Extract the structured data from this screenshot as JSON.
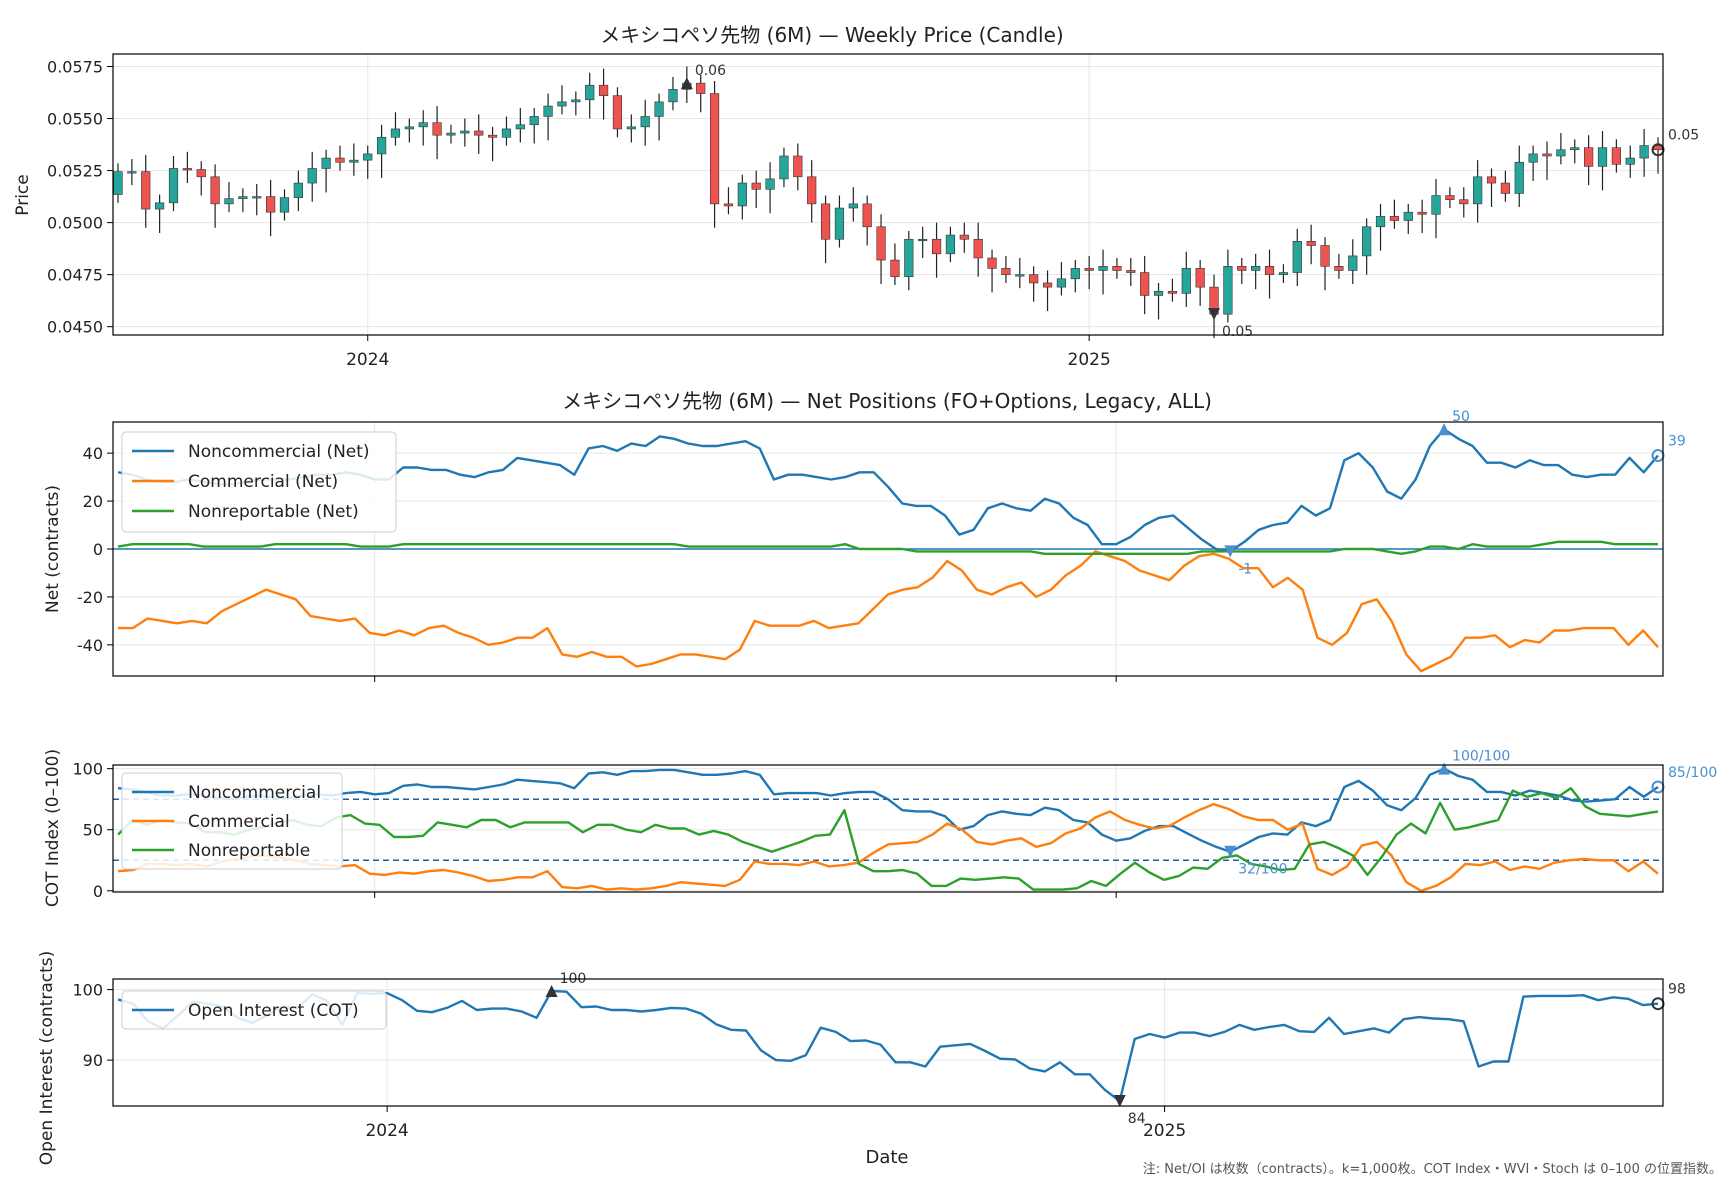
{
  "chart_data": [
    {
      "type": "candlestick",
      "title": "メキシコペソ先物 (6M) — Weekly Price (Candle)",
      "ylabel": "Price",
      "ylim": [
        0.0446,
        0.0581
      ],
      "yticks": [
        "0.0450",
        "0.0475",
        "0.0500",
        "0.0525",
        "0.0550",
        "0.0575"
      ],
      "x_ticks": [
        "2024",
        "2025"
      ],
      "closes": [
        0.05245,
        0.05245,
        0.05065,
        0.05095,
        0.0526,
        0.05255,
        0.0522,
        0.0509,
        0.05115,
        0.05125,
        0.05125,
        0.0505,
        0.0512,
        0.0519,
        0.0526,
        0.0531,
        0.0529,
        0.053,
        0.0533,
        0.0541,
        0.0545,
        0.0546,
        0.0548,
        0.0542,
        0.0543,
        0.0544,
        0.0542,
        0.0541,
        0.0545,
        0.0547,
        0.0551,
        0.0556,
        0.0558,
        0.0559,
        0.0566,
        0.0561,
        0.0545,
        0.0546,
        0.0551,
        0.0558,
        0.0564,
        0.0567,
        0.0562,
        0.0509,
        0.0508,
        0.0519,
        0.0516,
        0.0521,
        0.0532,
        0.0522,
        0.0509,
        0.0492,
        0.0507,
        0.0509,
        0.0498,
        0.0482,
        0.0474,
        0.0492,
        0.0492,
        0.0485,
        0.0494,
        0.0492,
        0.0483,
        0.0478,
        0.0475,
        0.0475,
        0.0471,
        0.0469,
        0.0473,
        0.0478,
        0.0477,
        0.0479,
        0.0477,
        0.0476,
        0.0465,
        0.0467,
        0.0466,
        0.0478,
        0.0469,
        0.0456,
        0.0479,
        0.0477,
        0.0479,
        0.0475,
        0.0476,
        0.0491,
        0.0489,
        0.0479,
        0.0477,
        0.0484,
        0.0498,
        0.0503,
        0.0501,
        0.0505,
        0.0504,
        0.0513,
        0.0511,
        0.0509,
        0.0522,
        0.0519,
        0.0514,
        0.0529,
        0.0533,
        0.0532,
        0.0535,
        0.0536,
        0.0527,
        0.0536,
        0.0528,
        0.0531,
        0.0537,
        0.0535
      ],
      "annotations": [
        {
          "label": "0.06",
          "marker": "max"
        },
        {
          "label": "0.05",
          "marker": "min"
        },
        {
          "label": "0.05",
          "marker": "last"
        }
      ]
    },
    {
      "type": "line",
      "title": "メキシコペソ先物 (6M) — Net Positions (FO+Options, Legacy, ALL)",
      "ylabel": "Net (contracts)",
      "ylim": [
        -53,
        53
      ],
      "yticks": [
        "-40",
        "-20",
        "0",
        "20",
        "40"
      ],
      "series": [
        {
          "name": "Noncommercial (Net)",
          "color": "#1f77b4",
          "values": [
            32,
            31,
            29,
            28,
            28,
            29,
            28,
            27,
            27,
            28,
            29,
            29,
            29,
            30,
            31,
            31,
            32,
            31,
            29,
            29,
            34,
            34,
            33,
            33,
            31,
            30,
            32,
            33,
            38,
            37,
            36,
            35,
            31,
            42,
            43,
            41,
            44,
            43,
            47,
            46,
            44,
            43,
            43,
            44,
            45,
            42,
            29,
            31,
            31,
            30,
            29,
            30,
            32,
            32,
            26,
            19,
            18,
            18,
            14,
            6,
            8,
            17,
            19,
            17,
            16,
            21,
            19,
            13,
            10,
            2,
            2,
            5,
            10,
            13,
            14,
            9,
            4,
            0,
            -1,
            3,
            8,
            10,
            11,
            18,
            14,
            17,
            37,
            40,
            34,
            24,
            21,
            29,
            43,
            50,
            46,
            43,
            36,
            36,
            34,
            37,
            35,
            35,
            31,
            30,
            31,
            31,
            38,
            32,
            39
          ]
        },
        {
          "name": "Commercial (Net)",
          "color": "#ff7f0e",
          "values": [
            -33,
            -33,
            -29,
            -30,
            -31,
            -30,
            -31,
            -26,
            -23,
            -20,
            -17,
            -19,
            -21,
            -28,
            -29,
            -30,
            -29,
            -35,
            -36,
            -34,
            -36,
            -33,
            -32,
            -35,
            -37,
            -40,
            -39,
            -37,
            -37,
            -33,
            -44,
            -45,
            -43,
            -45,
            -45,
            -49,
            -48,
            -46,
            -44,
            -44,
            -45,
            -46,
            -42,
            -30,
            -32,
            -32,
            -32,
            -30,
            -33,
            -32,
            -31,
            -25,
            -19,
            -17,
            -16,
            -12,
            -5,
            -9,
            -17,
            -19,
            -16,
            -14,
            -20,
            -17,
            -11,
            -7,
            -1,
            -3,
            -5,
            -9,
            -11,
            -13,
            -7,
            -3,
            -2,
            -4,
            -8,
            -8,
            -16,
            -12,
            -17,
            -37,
            -40,
            -35,
            -23,
            -21,
            -30,
            -44,
            -51,
            -48,
            -45,
            -37,
            -37,
            -36,
            -41,
            -38,
            -39,
            -34,
            -34,
            -33,
            -33,
            -33,
            -40,
            -34,
            -41
          ]
        },
        {
          "name": "Nonreportable (Net)",
          "color": "#2ca02c",
          "values": [
            1,
            2,
            2,
            2,
            2,
            2,
            1,
            1,
            1,
            1,
            1,
            2,
            2,
            2,
            2,
            2,
            2,
            1,
            1,
            1,
            2,
            2,
            2,
            2,
            2,
            2,
            2,
            2,
            2,
            2,
            2,
            2,
            2,
            2,
            2,
            2,
            2,
            2,
            2,
            2,
            1,
            1,
            1,
            1,
            1,
            1,
            1,
            1,
            1,
            1,
            1,
            2,
            0,
            0,
            0,
            0,
            -1,
            -1,
            -1,
            -1,
            -1,
            -1,
            -1,
            -1,
            -1,
            -2,
            -2,
            -2,
            -2,
            -2,
            -2,
            -2,
            -2,
            -2,
            -2,
            -2,
            -1,
            -1,
            -1,
            -1,
            -1,
            -1,
            -1,
            -1,
            -1,
            -1,
            0,
            0,
            0,
            -1,
            -2,
            -1,
            1,
            1,
            0,
            2,
            1,
            1,
            1,
            1,
            2,
            3,
            3,
            3,
            3,
            2,
            2,
            2,
            2
          ]
        }
      ],
      "annotations": [
        {
          "label": "50",
          "marker": "max"
        },
        {
          "label": "-1",
          "marker": "min"
        },
        {
          "label": "39",
          "marker": "last"
        }
      ]
    },
    {
      "type": "line",
      "ylabel": "COT Index (0–100)",
      "ylim": [
        -1,
        103
      ],
      "yticks": [
        "0",
        "50",
        "100"
      ],
      "hlines": [
        25,
        75
      ],
      "series": [
        {
          "name": "Noncommercial",
          "color": "#1f77b4",
          "values": [
            84,
            83,
            81,
            78,
            78,
            79,
            78,
            76,
            75,
            77,
            78,
            76,
            76,
            78,
            79,
            78,
            80,
            81,
            79,
            80,
            86,
            87,
            85,
            85,
            84,
            83,
            85,
            87,
            91,
            90,
            89,
            88,
            84,
            96,
            97,
            95,
            98,
            98,
            99,
            99,
            97,
            95,
            95,
            96,
            98,
            95,
            79,
            80,
            80,
            80,
            78,
            80,
            81,
            81,
            75,
            66,
            65,
            65,
            61,
            50,
            53,
            62,
            65,
            63,
            62,
            68,
            66,
            58,
            56,
            46,
            41,
            43,
            49,
            53,
            53,
            47,
            41,
            36,
            32,
            38,
            44,
            47,
            46,
            56,
            53,
            58,
            85,
            90,
            82,
            70,
            66,
            76,
            95,
            100,
            94,
            91,
            81,
            81,
            78,
            82,
            80,
            78,
            74,
            73,
            74,
            75,
            85,
            77,
            85
          ]
        },
        {
          "name": "Commercial",
          "color": "#ff7f0e",
          "values": [
            16,
            17,
            22,
            22,
            21,
            22,
            20,
            24,
            26,
            28,
            29,
            27,
            25,
            22,
            21,
            20,
            21,
            14,
            13,
            15,
            14,
            16,
            17,
            15,
            12,
            8,
            9,
            11,
            11,
            16,
            3,
            2,
            4,
            1,
            2,
            1,
            2,
            4,
            7,
            6,
            5,
            4,
            9,
            24,
            22,
            22,
            21,
            24,
            20,
            21,
            23,
            31,
            38,
            39,
            40,
            46,
            55,
            50,
            40,
            38,
            41,
            43,
            36,
            39,
            47,
            51,
            60,
            65,
            58,
            54,
            51,
            53,
            60,
            66,
            71,
            67,
            61,
            58,
            58,
            50,
            55,
            18,
            13,
            20,
            37,
            40,
            29,
            7,
            0,
            4,
            11,
            22,
            21,
            24,
            17,
            20,
            18,
            23,
            25,
            26,
            25,
            25,
            16,
            24,
            14
          ]
        },
        {
          "name": "Nonreportable",
          "color": "#2ca02c",
          "values": [
            46,
            58,
            54,
            58,
            56,
            55,
            48,
            48,
            46,
            50,
            52,
            56,
            58,
            54,
            53,
            60,
            62,
            55,
            54,
            44,
            44,
            45,
            56,
            54,
            52,
            58,
            58,
            52,
            56,
            56,
            56,
            56,
            48,
            54,
            54,
            50,
            48,
            54,
            51,
            51,
            46,
            49,
            46,
            40,
            36,
            32,
            36,
            40,
            45,
            46,
            66,
            22,
            16,
            16,
            17,
            14,
            4,
            4,
            10,
            9,
            10,
            11,
            10,
            1,
            1,
            1,
            2,
            8,
            4,
            14,
            23,
            15,
            9,
            12,
            19,
            18,
            27,
            29,
            22,
            20,
            17,
            18,
            38,
            40,
            35,
            29,
            13,
            28,
            46,
            55,
            47,
            72,
            50,
            52,
            55,
            58,
            82,
            77,
            80,
            76,
            84,
            69,
            63,
            62,
            61,
            63,
            65
          ]
        }
      ],
      "annotations": [
        {
          "label": "100/100",
          "marker": "max"
        },
        {
          "label": "32/100",
          "marker": "min"
        },
        {
          "label": "85/100",
          "marker": "last"
        }
      ]
    },
    {
      "type": "line",
      "ylabel": "Open Interest (contracts)",
      "xlabel": "Date",
      "ylim": [
        83.5,
        101.5
      ],
      "yticks": [
        "90",
        "100"
      ],
      "x_ticks": [
        "2024",
        "2025"
      ],
      "series": [
        {
          "name": "Open Interest (COT)",
          "color": "#1f77b4",
          "values": [
            98.6,
            98,
            95.5,
            94.5,
            96.3,
            98.3,
            98,
            97.6,
            96,
            95.3,
            96.4,
            97.6,
            97.4,
            99.3,
            98.4,
            95,
            99.5,
            99.4,
            99.5,
            98.5,
            97,
            96.8,
            97.4,
            98.4,
            97.1,
            97.3,
            97.3,
            96.9,
            96,
            99.8,
            99.7,
            97.5,
            97.6,
            97.1,
            97.1,
            96.9,
            97.1,
            97.4,
            97.3,
            96.6,
            95.1,
            94.3,
            94.2,
            91.4,
            90,
            89.9,
            90.7,
            94.6,
            94,
            92.7,
            92.8,
            92.2,
            89.7,
            89.7,
            89.1,
            91.9,
            92.1,
            92.3,
            91.3,
            90.2,
            90.1,
            88.8,
            88.4,
            89.7,
            88,
            88,
            85.8,
            84.2,
            93,
            93.7,
            93.2,
            93.9,
            93.9,
            93.4,
            94,
            95,
            94.3,
            94.7,
            95,
            94.1,
            94,
            96,
            93.7,
            94.1,
            94.5,
            93.9,
            95.8,
            96.1,
            95.9,
            95.8,
            95.5,
            89.1,
            89.8,
            89.8,
            99,
            99.1,
            99.1,
            99.1,
            99.2,
            98.5,
            98.9,
            98.7,
            97.8,
            98
          ]
        }
      ],
      "annotations": [
        {
          "label": "100",
          "marker": "max"
        },
        {
          "label": "84",
          "marker": "min"
        },
        {
          "label": "98",
          "marker": "last"
        }
      ]
    }
  ],
  "footnote": "注: Net/OI は枚数（contracts）。k=1,000枚。COT Index・WVI・Stoch は 0–100 の位置指数。"
}
